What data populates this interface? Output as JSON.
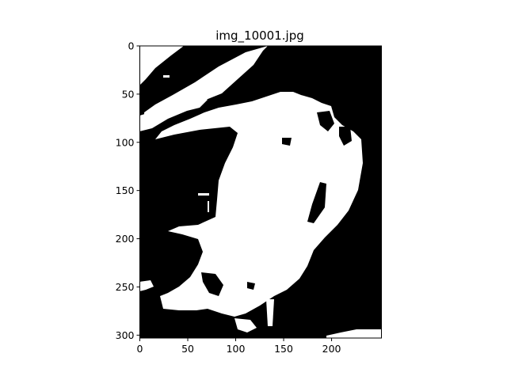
{
  "figure": {
    "title": "img_10001.jpg"
  },
  "axes": {
    "x_ticks": [
      {
        "value": 0,
        "label": "0"
      },
      {
        "value": 50,
        "label": "50"
      },
      {
        "value": 100,
        "label": "100"
      },
      {
        "value": 150,
        "label": "150"
      },
      {
        "value": 200,
        "label": "200"
      }
    ],
    "y_ticks": [
      {
        "value": 0,
        "label": "0"
      },
      {
        "value": 50,
        "label": "50"
      },
      {
        "value": 100,
        "label": "100"
      },
      {
        "value": 150,
        "label": "150"
      },
      {
        "value": 200,
        "label": "200"
      },
      {
        "value": 250,
        "label": "250"
      },
      {
        "value": 300,
        "label": "300"
      }
    ],
    "x_range": [
      0,
      252
    ],
    "y_range": [
      0,
      303
    ],
    "y_inverted": true
  },
  "image": {
    "colormap": "binary black/white",
    "background_color": "#000000",
    "foreground_color": "#ffffff"
  }
}
